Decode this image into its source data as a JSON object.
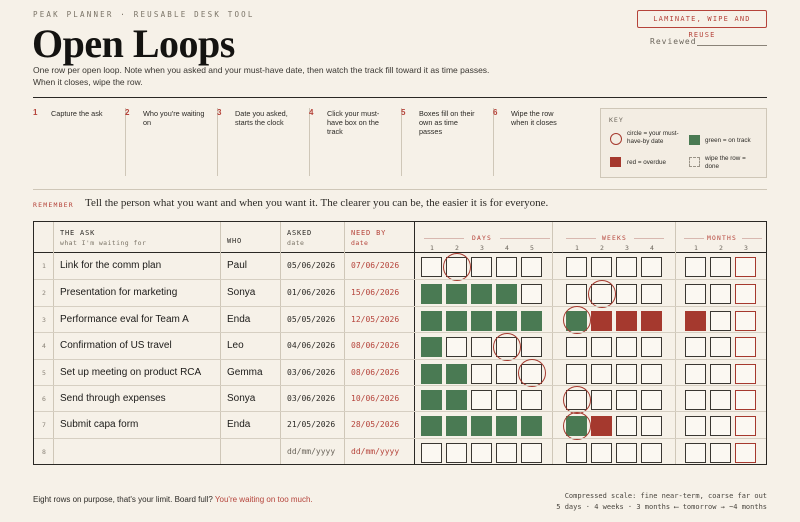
{
  "header": {
    "brand": "PEAK PLANNER · REUSABLE DESK TOOL",
    "title": "Open Loops",
    "subtitle": "One row per open loop. Note when you asked and your must-have date, then watch the track fill toward it as time passes. When it closes, wipe the row.",
    "badge": "LAMINATE, WIPE AND REUSE",
    "reviewed_label": "Reviewed"
  },
  "steps": [
    {
      "num": "1",
      "text": "Capture the ask"
    },
    {
      "num": "2",
      "text": "Who you're waiting on"
    },
    {
      "num": "3",
      "text": "Date you asked, starts the clock"
    },
    {
      "num": "4",
      "text": "Click your must-have box on the track"
    },
    {
      "num": "5",
      "text": "Boxes fill on their own as time passes"
    },
    {
      "num": "6",
      "text": "Wipe the row when it closes"
    }
  ],
  "key": {
    "title": "KEY",
    "circle": "circle = your must-have-by date",
    "green": "green = on track",
    "red": "red = overdue",
    "dashed": "wipe the row = done",
    "colors": {
      "green": "#4a7a53",
      "red": "#a5392e"
    }
  },
  "remember": {
    "label": "REMEMBER",
    "text": "Tell the person what you want and when you want it. The clearer you can be, the easier it is for everyone."
  },
  "table": {
    "headers": {
      "ask": "THE ASK",
      "ask_sub": "what I'm waiting for",
      "who": "WHO",
      "asked": "ASKED",
      "asked_sub": "date",
      "need": "NEED BY",
      "need_sub": "date"
    },
    "groups": {
      "days": "DAYS",
      "weeks": "WEEKS",
      "months": "MONTHS"
    },
    "day_nums": [
      "1",
      "2",
      "3",
      "4",
      "5"
    ],
    "week_nums": [
      "1",
      "2",
      "3",
      "4"
    ],
    "month_nums": [
      "1",
      "2",
      "3"
    ],
    "rows": [
      {
        "n": "1",
        "ask": "Link for the comm plan",
        "who": "Paul",
        "asked": "05/06/2026",
        "need": "07/06/2026",
        "days": [
          "e",
          "e",
          "e",
          "e",
          "e"
        ],
        "weeks": [
          "e",
          "e",
          "e",
          "e"
        ],
        "months": [
          "e",
          "e",
          "r"
        ],
        "circle": 1
      },
      {
        "n": "2",
        "ask": "Presentation for marketing",
        "who": "Sonya",
        "asked": "01/06/2026",
        "need": "15/06/2026",
        "days": [
          "g",
          "g",
          "g",
          "g",
          "e"
        ],
        "weeks": [
          "e",
          "e",
          "e",
          "e"
        ],
        "months": [
          "e",
          "e",
          "r"
        ],
        "circle": 6
      },
      {
        "n": "3",
        "ask": "Performance eval for Team A",
        "who": "Enda",
        "asked": "05/05/2026",
        "need": "12/05/2026",
        "days": [
          "g",
          "g",
          "g",
          "g",
          "g"
        ],
        "weeks": [
          "g",
          "R",
          "R",
          "R"
        ],
        "months": [
          "R",
          "e",
          "r"
        ],
        "circle": 5
      },
      {
        "n": "4",
        "ask": "Confirmation of US travel",
        "who": "Leo",
        "asked": "04/06/2026",
        "need": "08/06/2026",
        "days": [
          "g",
          "e",
          "e",
          "e",
          "e"
        ],
        "weeks": [
          "e",
          "e",
          "e",
          "e"
        ],
        "months": [
          "e",
          "e",
          "r"
        ],
        "circle": 3
      },
      {
        "n": "5",
        "ask": "Set up meeting on product RCA",
        "who": "Gemma",
        "asked": "03/06/2026",
        "need": "08/06/2026",
        "days": [
          "g",
          "g",
          "e",
          "e",
          "e"
        ],
        "weeks": [
          "e",
          "e",
          "e",
          "e"
        ],
        "months": [
          "e",
          "e",
          "r"
        ],
        "circle": 4
      },
      {
        "n": "6",
        "ask": "Send through expenses",
        "who": "Sonya",
        "asked": "03/06/2026",
        "need": "10/06/2026",
        "days": [
          "g",
          "g",
          "e",
          "e",
          "e"
        ],
        "weeks": [
          "e",
          "e",
          "e",
          "e"
        ],
        "months": [
          "e",
          "e",
          "r"
        ],
        "circle": 5
      },
      {
        "n": "7",
        "ask": "Submit capa form",
        "who": "Enda",
        "asked": "21/05/2026",
        "need": "28/05/2026",
        "days": [
          "g",
          "g",
          "g",
          "g",
          "g"
        ],
        "weeks": [
          "g",
          "R",
          "e",
          "e"
        ],
        "months": [
          "e",
          "e",
          "r"
        ],
        "circle": 5
      },
      {
        "n": "8",
        "ask": "",
        "who": "",
        "asked": "dd/mm/yyyy",
        "need": "dd/mm/yyyy",
        "days": [
          "e",
          "e",
          "e",
          "e",
          "e"
        ],
        "weeks": [
          "e",
          "e",
          "e",
          "e"
        ],
        "months": [
          "e",
          "e",
          "r"
        ],
        "circle": -1
      }
    ]
  },
  "footer": {
    "left": "Eight rows on purpose, that's your limit. Board full?",
    "warn": "You're waiting on too much.",
    "right1": "Compressed scale: fine near-term, coarse far out",
    "right2": "5 days · 4 weeks · 3 months ⟵ tomorrow → ~4 months"
  }
}
